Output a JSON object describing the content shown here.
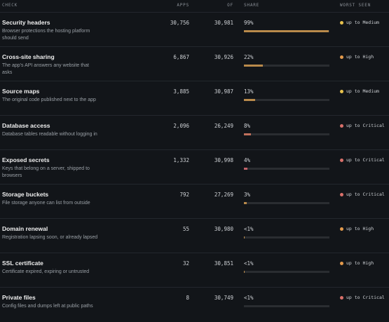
{
  "header": {
    "check": "CHECK",
    "apps": "APPS",
    "of": "OF",
    "share": "SHARE",
    "worst": "WORST SEEN"
  },
  "table": {
    "bar_max": 100,
    "rows": [
      {
        "title": "Security headers",
        "description": "Browser protections the hosting platform should send",
        "apps": "30,756",
        "of": "30,981",
        "share": {
          "value": 99,
          "label": "99%"
        },
        "worst": "up to Medium",
        "dot_color": "#e8c24d",
        "bar_color": "#b98a4b"
      },
      {
        "title": "Cross-site sharing",
        "description": "The app's API answers any website that asks",
        "apps": "6,867",
        "of": "30,926",
        "share": {
          "value": 22,
          "label": "22%"
        },
        "worst": "up to High",
        "dot_color": "#e39a4c",
        "bar_color": "#b98a4b"
      },
      {
        "title": "Source maps",
        "description": "The original code published next to the app",
        "apps": "3,885",
        "of": "30,987",
        "share": {
          "value": 13,
          "label": "13%"
        },
        "worst": "up to Medium",
        "dot_color": "#e8c24d",
        "bar_color": "#b98a4b"
      },
      {
        "title": "Database access",
        "description": "Database tables readable without logging in",
        "apps": "2,096",
        "of": "26,249",
        "share": {
          "value": 8,
          "label": "8%"
        },
        "worst": "up to Critical",
        "dot_color": "#d9706a",
        "bar_color": "#c0705c"
      },
      {
        "title": "Exposed secrets",
        "description": "Keys that belong on a server, shipped to browsers",
        "apps": "1,332",
        "of": "30,998",
        "share": {
          "value": 4,
          "label": "4%"
        },
        "worst": "up to Critical",
        "dot_color": "#d9706a",
        "bar_color": "#c2646a"
      },
      {
        "title": "Storage buckets",
        "description": "File storage anyone can list from outside",
        "apps": "792",
        "of": "27,269",
        "share": {
          "value": 3,
          "label": "3%"
        },
        "worst": "up to Critical",
        "dot_color": "#d9706a",
        "bar_color": "#b98a4b"
      },
      {
        "title": "Domain renewal",
        "description": "Registration lapsing soon, or already lapsed",
        "apps": "55",
        "of": "30,980",
        "share": {
          "value": 0.18,
          "label": "<1%"
        },
        "worst": "up to High",
        "dot_color": "#e39a4c",
        "bar_color": "#b98a4b"
      },
      {
        "title": "SSL certificate",
        "description": "Certificate expired, expiring or untrusted",
        "apps": "32",
        "of": "30,851",
        "share": {
          "value": 0.1,
          "label": "<1%"
        },
        "worst": "up to High",
        "dot_color": "#e39a4c",
        "bar_color": "#b98a4b"
      },
      {
        "title": "Private files",
        "description": "Config files and dumps left at public paths",
        "apps": "8",
        "of": "30,749",
        "share": {
          "value": 0.03,
          "label": "<1%"
        },
        "worst": "up to Critical",
        "dot_color": "#d9706a",
        "bar_color": "#b98a4b"
      }
    ]
  }
}
